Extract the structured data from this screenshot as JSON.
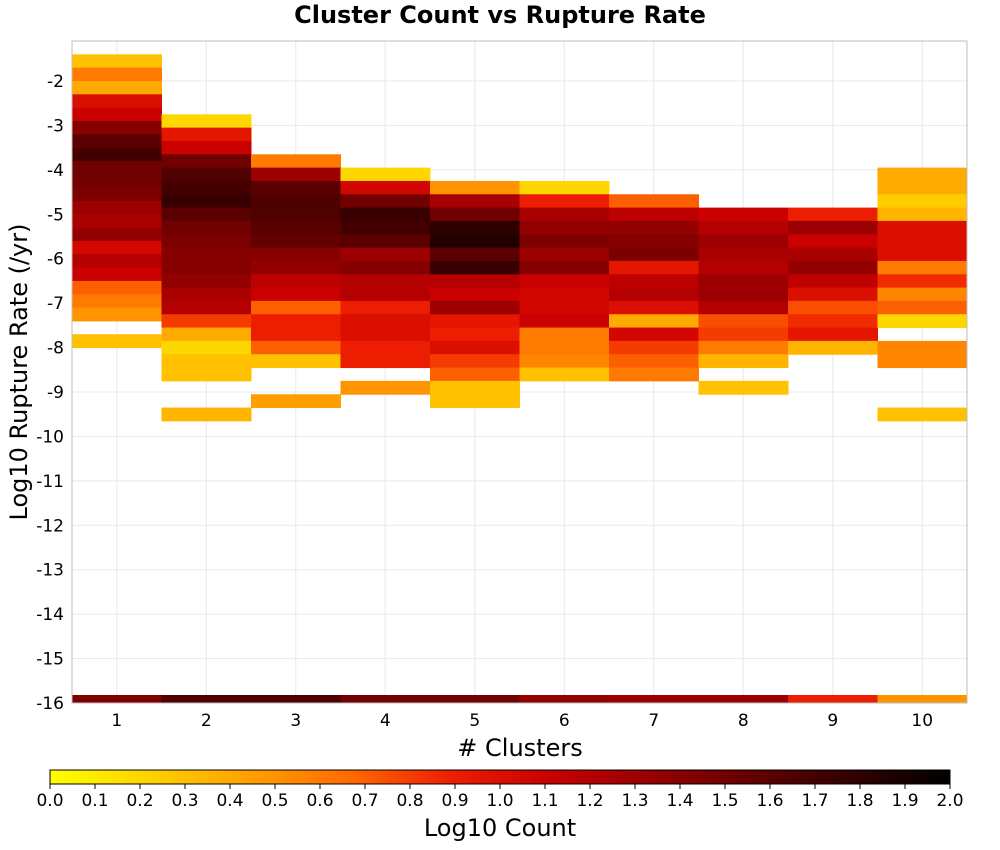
{
  "chart_data": {
    "type": "heatmap",
    "title": "Cluster Count vs Rupture Rate",
    "xlabel": "# Clusters",
    "ylabel": "Log10 Rupture Rate (/yr)",
    "x_ticks": [
      "1",
      "2",
      "3",
      "4",
      "5",
      "6",
      "7",
      "8",
      "9",
      "10"
    ],
    "y_ticks": [
      "-2",
      "-3",
      "-4",
      "-5",
      "-6",
      "-7",
      "-8",
      "-9",
      "-10",
      "-11",
      "-12",
      "-13",
      "-14",
      "-15",
      "-16"
    ],
    "xlim": [
      0.5,
      10.5
    ],
    "ylim": [
      -16,
      -1.1
    ],
    "bin_height": 0.3,
    "grid": true,
    "colorbar": {
      "label": "Log10 Count",
      "range": [
        0,
        2
      ],
      "ticks": [
        "0.0",
        "0.1",
        "0.2",
        "0.3",
        "0.4",
        "0.5",
        "0.6",
        "0.7",
        "0.8",
        "0.9",
        "1.0",
        "1.1",
        "1.2",
        "1.3",
        "1.4",
        "1.5",
        "1.6",
        "1.7",
        "1.8",
        "1.9",
        "2.0"
      ],
      "colors": [
        "#ffff00",
        "#ffd200",
        "#ffa000",
        "#ff6a00",
        "#ee1e00",
        "#c80000",
        "#960000",
        "#640000",
        "#320000",
        "#000000"
      ]
    },
    "series": [
      {
        "x": 1,
        "y_top": -1.4,
        "values": [
          0.3,
          0.6,
          0.4,
          1.0,
          1.1,
          1.4,
          1.6,
          1.7,
          1.5,
          1.5,
          1.45,
          1.3,
          1.25,
          1.35,
          1.05,
          1.2,
          1.1,
          0.7,
          0.6,
          0.5,
          null,
          0.3,
          null,
          null,
          null,
          null,
          null,
          null,
          null
        ]
      },
      {
        "x": 2,
        "y_top": -2.75,
        "values": [
          0.2,
          0.95,
          1.1,
          1.5,
          1.65,
          1.7,
          1.75,
          1.6,
          1.5,
          1.45,
          1.4,
          1.4,
          1.35,
          1.25,
          1.2,
          0.8,
          0.4,
          0.2,
          0.3,
          0.3,
          null,
          null,
          0.35
        ]
      },
      {
        "x": 3,
        "y_top": -3.65,
        "values": [
          0.6,
          1.3,
          1.6,
          1.65,
          1.65,
          1.6,
          1.55,
          1.4,
          1.35,
          1.15,
          1.1,
          0.7,
          0.9,
          0.9,
          0.7,
          0.3,
          null,
          null,
          0.45
        ]
      },
      {
        "x": 4,
        "y_top": -3.95,
        "values": [
          0.2,
          1.05,
          1.5,
          1.75,
          1.7,
          1.6,
          1.3,
          1.4,
          1.2,
          1.2,
          0.9,
          1.0,
          1.0,
          0.9,
          0.9,
          null,
          0.5
        ]
      },
      {
        "x": 5,
        "y_top": -4.25,
        "values": [
          0.5,
          1.25,
          1.5,
          1.8,
          1.85,
          1.6,
          1.75,
          1.2,
          1.1,
          1.3,
          0.95,
          0.9,
          1.0,
          0.8,
          0.7,
          0.3,
          0.3
        ]
      },
      {
        "x": 6,
        "y_top": -4.25,
        "values": [
          0.2,
          0.9,
          1.25,
          1.35,
          1.45,
          1.3,
          1.4,
          1.1,
          1.05,
          1.05,
          1.1,
          0.6,
          0.6,
          0.55,
          0.3
        ]
      },
      {
        "x": 7,
        "y_top": -4.55,
        "values": [
          0.7,
          1.15,
          1.35,
          1.4,
          1.45,
          0.95,
          1.15,
          1.2,
          1.0,
          0.4,
          1.05,
          0.8,
          0.7,
          0.6
        ]
      },
      {
        "x": 8,
        "y_top": -4.85,
        "values": [
          1.1,
          1.2,
          1.3,
          1.25,
          1.2,
          1.3,
          1.3,
          1.2,
          0.75,
          0.8,
          0.6,
          0.35,
          null,
          0.3
        ]
      },
      {
        "x": 9,
        "y_top": -4.85,
        "values": [
          0.9,
          1.3,
          1.1,
          1.25,
          1.35,
          1.15,
          1.0,
          0.75,
          0.85,
          0.95,
          0.35
        ]
      },
      {
        "x": 10,
        "y_top": -3.95,
        "values": [
          0.4,
          0.4,
          0.25,
          0.35,
          1.0,
          1.0,
          1.0,
          0.6,
          0.85,
          0.55,
          0.7,
          0.2,
          null,
          0.55,
          0.55,
          null,
          null,
          null,
          0.3
        ]
      }
    ],
    "floor_row": {
      "y": -16,
      "values": [
        1.45,
        1.65,
        1.65,
        1.5,
        1.5,
        1.35,
        1.3,
        1.3,
        0.9,
        0.5
      ]
    }
  }
}
